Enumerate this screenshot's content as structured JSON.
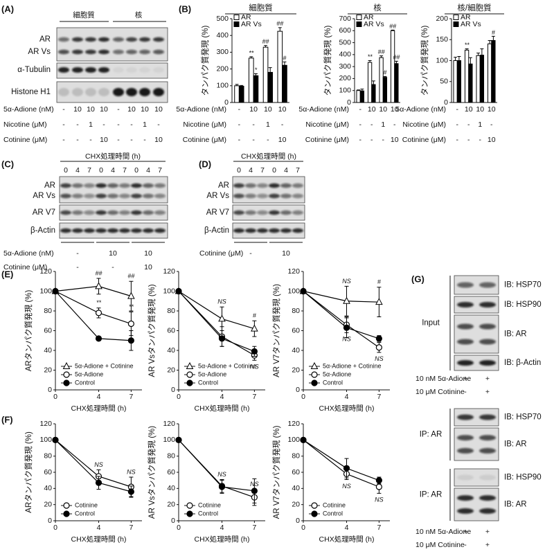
{
  "panel_labels": [
    "(A)",
    "(B)",
    "(C)",
    "(D)",
    "(E)",
    "(F)",
    "(G)"
  ],
  "blot_a": {
    "headers": [
      "細胞質",
      "核"
    ],
    "rows": [
      "AR",
      "AR Vs",
      "α-Tubulin",
      "Histone H1"
    ],
    "conditions": [
      {
        "label": "5α-Adione (nM)",
        "cells": [
          "-",
          "10",
          "10",
          "10",
          "-",
          "10",
          "10",
          "10"
        ]
      },
      {
        "label": "Nicotine (μM)",
        "cells": [
          "-",
          "-",
          "1",
          "-",
          "-",
          "-",
          "1",
          "-"
        ]
      },
      {
        "label": "Cotinine (μM)",
        "cells": [
          "-",
          "-",
          "-",
          "10",
          "-",
          "-",
          "-",
          "10"
        ]
      }
    ]
  },
  "blot_c": {
    "header": "CHX処理時間 (h)",
    "lanes": [
      "0",
      "4",
      "7",
      "0",
      "4",
      "7",
      "0",
      "4",
      "7"
    ],
    "rows": [
      "AR",
      "AR Vs",
      "AR V7",
      "β-Actin"
    ],
    "conditions": [
      {
        "label": "5α-Adione (nM)",
        "cells": [
          "-",
          "10",
          "10"
        ]
      },
      {
        "label": "Cotinine (μM)",
        "cells": [
          "-",
          "-",
          "10"
        ]
      }
    ]
  },
  "blot_d": {
    "header": "CHX処理時間 (h)",
    "lanes": [
      "0",
      "4",
      "7",
      "0",
      "4",
      "7"
    ],
    "rows": [
      "AR",
      "AR Vs",
      "AR V7",
      "β-Actin"
    ],
    "conditions": [
      {
        "label": "Cotinine (μM)",
        "cells": [
          "-",
          "10"
        ]
      }
    ]
  },
  "blot_g": {
    "blocks": [
      {
        "group": "Input",
        "rows": [
          "IB: HSP70",
          "IB: HSP90",
          "IB: AR",
          "IB: β-Actin"
        ]
      },
      {
        "group": "IP: AR",
        "rows": [
          "IB: HSP70",
          "IB: AR"
        ]
      },
      {
        "group": "IP: AR",
        "rows": [
          "IB: HSP90",
          "IB: AR"
        ]
      }
    ],
    "condition_sets": [
      [
        {
          "label": "10 nM 5α-Adione",
          "cells": [
            "+",
            "+"
          ]
        },
        {
          "label": "10 μM Cotinine",
          "cells": [
            "-",
            "+"
          ]
        }
      ],
      [
        {
          "label": "10 nM 5α-Adione",
          "cells": [
            "+",
            "+"
          ]
        },
        {
          "label": "10 μM Cotinine",
          "cells": [
            "-",
            "+"
          ]
        }
      ]
    ]
  },
  "chart_data": [
    {
      "type": "bar",
      "title": "細胞質",
      "y_label": "タンパク質発現 (%)",
      "x_label": "5α-Adione (nM)",
      "categories": [
        "-",
        "10",
        "10",
        "10"
      ],
      "conditions": [
        {
          "label": "Nicotine (μM)",
          "cells": [
            "-",
            "-",
            "1",
            "-"
          ]
        },
        {
          "label": "Cotinine (μM)",
          "cells": [
            "-",
            "-",
            "-",
            "10"
          ]
        }
      ],
      "ylim": [
        0,
        500
      ],
      "yticks": [
        0,
        100,
        200,
        300,
        400,
        500
      ],
      "legend": "upper-left",
      "series": [
        {
          "name": "AR",
          "color": "#ffffff",
          "values": [
            100,
            265,
            330,
            425
          ],
          "errors": [
            8,
            8,
            10,
            22
          ],
          "annotations": [
            null,
            "**",
            "##",
            "##"
          ]
        },
        {
          "name": "AR Vs",
          "color": "#000000",
          "values": [
            97,
            160,
            180,
            222
          ],
          "errors": [
            5,
            12,
            28,
            20
          ],
          "annotations": [
            null,
            "*",
            null,
            "#"
          ]
        }
      ]
    },
    {
      "type": "bar",
      "title": "核",
      "y_label": "タンパク質発現 (%)",
      "x_label": "5α-Adione (nM)",
      "categories": [
        "-",
        "10",
        "10",
        "10"
      ],
      "conditions": [
        {
          "label": "Nicotine (μM)",
          "cells": [
            "-",
            "-",
            "1",
            "-"
          ]
        },
        {
          "label": "Cotinine (μM)",
          "cells": [
            "-",
            "-",
            "-",
            "10"
          ]
        }
      ],
      "ylim": [
        0,
        700
      ],
      "yticks": [
        0,
        100,
        200,
        300,
        400,
        500,
        600,
        700
      ],
      "legend": "upper-left",
      "series": [
        {
          "name": "AR",
          "color": "#ffffff",
          "values": [
            100,
            335,
            375,
            600
          ],
          "errors": [
            5,
            15,
            15,
            5
          ],
          "annotations": [
            null,
            "**",
            "##",
            "##"
          ]
        },
        {
          "name": "AR Vs",
          "color": "#000000",
          "values": [
            97,
            150,
            210,
            325
          ],
          "errors": [
            15,
            30,
            8,
            20
          ],
          "annotations": [
            null,
            null,
            "#",
            "##"
          ]
        }
      ]
    },
    {
      "type": "bar",
      "title": "核/細胞質",
      "y_label": "タンパク質発現 (%)",
      "x_label": "5α-Adione (nM)",
      "categories": [
        "-",
        "10",
        "10",
        "10"
      ],
      "conditions": [
        {
          "label": "Nicotine (μM)",
          "cells": [
            "-",
            "-",
            "1",
            "-"
          ]
        },
        {
          "label": "Cotinine (μM)",
          "cells": [
            "-",
            "-",
            "-",
            "10"
          ]
        }
      ],
      "ylim": [
        0,
        200
      ],
      "yticks": [
        0,
        50,
        100,
        150,
        200
      ],
      "legend": "upper-left",
      "series": [
        {
          "name": "AR",
          "color": "#ffffff",
          "values": [
            100,
            125,
            112,
            140
          ],
          "errors": [
            8,
            3,
            6,
            8
          ],
          "annotations": [
            null,
            "**",
            null,
            null
          ]
        },
        {
          "name": "AR Vs",
          "color": "#000000",
          "values": [
            100,
            92,
            113,
            148
          ],
          "errors": [
            10,
            15,
            15,
            10
          ],
          "annotations": [
            null,
            null,
            null,
            "#"
          ]
        }
      ]
    },
    {
      "type": "line",
      "y_label": "ARタンパク質発現 (%)",
      "x_label": "CHX処理時間 (h)",
      "x": [
        0,
        4,
        7
      ],
      "xlim": [
        0,
        8
      ],
      "xticks": [
        0,
        4,
        7
      ],
      "ylim": [
        0,
        120
      ],
      "yticks": [
        0,
        20,
        40,
        60,
        80,
        100,
        120
      ],
      "legend": "lower-left",
      "series": [
        {
          "name": "5α-Adione + Cotinine",
          "marker": "triangle",
          "color": "#ffffff",
          "values": [
            100,
            105,
            95
          ],
          "errors": [
            0,
            8,
            15
          ],
          "annotations": [
            null,
            "##",
            "##"
          ],
          "annotation_position": "above"
        },
        {
          "name": "5α-Adione",
          "marker": "circle",
          "color": "#ffffff",
          "values": [
            100,
            78,
            67
          ],
          "errors": [
            0,
            5,
            12
          ],
          "annotations": [
            null,
            "**",
            "**"
          ],
          "annotation_position": "above"
        },
        {
          "name": "Control",
          "marker": "circle",
          "color": "#000000",
          "values": [
            100,
            52,
            50
          ],
          "errors": [
            0,
            2,
            10
          ]
        }
      ]
    },
    {
      "type": "line",
      "y_label": "AR Vsタンパク質発現 (%)",
      "x_label": "CHX処理時間 (h)",
      "x": [
        0,
        4,
        7
      ],
      "xlim": [
        0,
        8
      ],
      "xticks": [
        0,
        4,
        7
      ],
      "ylim": [
        0,
        120
      ],
      "yticks": [
        0,
        20,
        40,
        60,
        80,
        100,
        120
      ],
      "legend": "lower-left",
      "series": [
        {
          "name": "5α-Adione + Cotinine",
          "marker": "triangle",
          "color": "#ffffff",
          "values": [
            100,
            72,
            62
          ],
          "errors": [
            0,
            12,
            8
          ],
          "annotations": [
            null,
            "NS",
            "#"
          ],
          "annotation_position": "above"
        },
        {
          "name": "5α-Adione",
          "marker": "circle",
          "color": "#ffffff",
          "values": [
            100,
            54,
            35
          ],
          "errors": [
            0,
            10,
            5
          ],
          "annotations": [
            null,
            null,
            "NS"
          ],
          "annotation_position": "below"
        },
        {
          "name": "Control",
          "marker": "circle",
          "color": "#000000",
          "values": [
            100,
            52,
            39
          ],
          "errors": [
            0,
            8,
            5
          ]
        }
      ]
    },
    {
      "type": "line",
      "y_label": "AR V7タンパク質発現 (%)",
      "x_label": "CHX処理時間 (h)",
      "x": [
        0,
        4,
        7
      ],
      "xlim": [
        0,
        8
      ],
      "xticks": [
        0,
        4,
        7
      ],
      "ylim": [
        0,
        120
      ],
      "yticks": [
        0,
        20,
        40,
        60,
        80,
        100,
        120
      ],
      "legend": "lower-left",
      "series": [
        {
          "name": "5α-Adione + Cotinine",
          "marker": "triangle",
          "color": "#ffffff",
          "values": [
            100,
            90,
            89
          ],
          "errors": [
            0,
            15,
            15
          ],
          "annotations": [
            null,
            "NS",
            "#"
          ],
          "annotation_position": "above"
        },
        {
          "name": "5α-Adione",
          "marker": "circle",
          "color": "#ffffff",
          "values": [
            100,
            66,
            43
          ],
          "errors": [
            0,
            8,
            5
          ],
          "annotations": [
            null,
            "NS",
            "NS"
          ],
          "annotation_position": "below"
        },
        {
          "name": "Control",
          "marker": "circle",
          "color": "#000000",
          "values": [
            100,
            63,
            52
          ],
          "errors": [
            0,
            10,
            3
          ]
        }
      ]
    },
    {
      "type": "line",
      "y_label": "ARタンパク質発現 (%)",
      "x_label": "CHX処理時間 (h)",
      "x": [
        0,
        4,
        7
      ],
      "xlim": [
        0,
        8
      ],
      "xticks": [
        0,
        4,
        7
      ],
      "ylim": [
        0,
        120
      ],
      "yticks": [
        0,
        20,
        40,
        60,
        80,
        100,
        120
      ],
      "legend": "lower-left",
      "series": [
        {
          "name": "Cotinine",
          "marker": "circle",
          "color": "#ffffff",
          "values": [
            100,
            55,
            42
          ],
          "errors": [
            0,
            8,
            12
          ],
          "annotations": [
            null,
            "NS",
            "NS"
          ],
          "annotation_position": "above"
        },
        {
          "name": "Control",
          "marker": "circle",
          "color": "#000000",
          "values": [
            100,
            47,
            36
          ],
          "errors": [
            0,
            8,
            7
          ]
        }
      ]
    },
    {
      "type": "line",
      "y_label": "AR Vsタンパク質発現 (%)",
      "x_label": "CHX処理時間 (h)",
      "x": [
        0,
        4,
        7
      ],
      "xlim": [
        0,
        8
      ],
      "xticks": [
        0,
        4,
        7
      ],
      "ylim": [
        0,
        120
      ],
      "yticks": [
        0,
        20,
        40,
        60,
        80,
        100,
        120
      ],
      "legend": "lower-left",
      "series": [
        {
          "name": "Cotinine",
          "marker": "circle",
          "color": "#ffffff",
          "values": [
            100,
            43,
            29
          ],
          "errors": [
            0,
            8,
            10
          ],
          "annotations": [
            null,
            "NS",
            "NS"
          ],
          "annotation_position": "above"
        },
        {
          "name": "Control",
          "marker": "circle",
          "color": "#000000",
          "values": [
            100,
            42,
            37
          ],
          "errors": [
            0,
            8,
            15
          ]
        }
      ]
    },
    {
      "type": "line",
      "y_label": "AR V7タンパク質発現 (%)",
      "x_label": "CHX処理時間 (h)",
      "x": [
        0,
        4,
        7
      ],
      "xlim": [
        0,
        8
      ],
      "xticks": [
        0,
        4,
        7
      ],
      "ylim": [
        0,
        120
      ],
      "yticks": [
        0,
        20,
        40,
        60,
        80,
        100,
        120
      ],
      "legend": "lower-left",
      "series": [
        {
          "name": "Cotinine",
          "marker": "circle",
          "color": "#ffffff",
          "values": [
            100,
            58,
            42
          ],
          "errors": [
            0,
            7,
            8
          ],
          "annotations": [
            null,
            "NS",
            "NS"
          ],
          "annotation_position": "below"
        },
        {
          "name": "Control",
          "marker": "circle",
          "color": "#000000",
          "values": [
            100,
            65,
            50
          ],
          "errors": [
            0,
            12,
            4
          ]
        }
      ]
    }
  ]
}
